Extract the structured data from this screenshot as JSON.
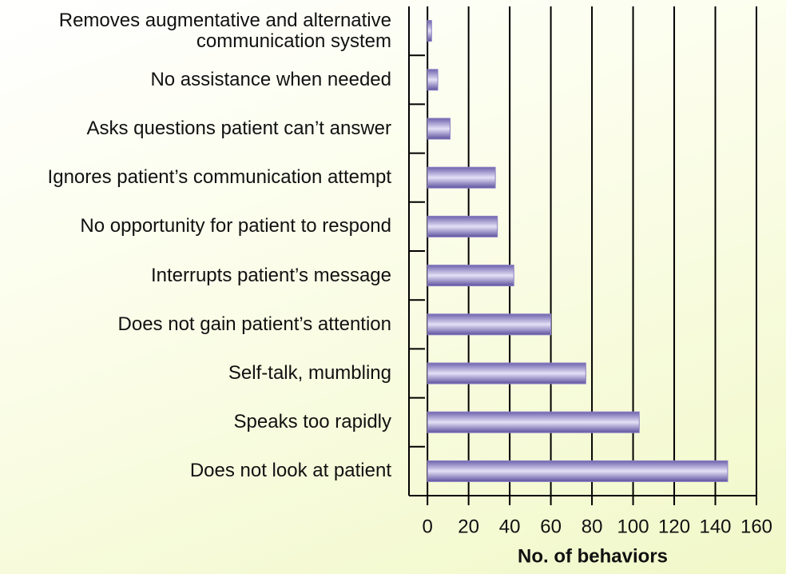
{
  "chart_data": {
    "type": "barh",
    "x_label": "No. of behaviors",
    "categories": [
      "Removes augmentative and alternative communication system",
      "No assistance when needed",
      "Asks questions patient can’t answer",
      "Ignores patient’s communication attempt",
      "No opportunity for patient to respond",
      "Interrupts patient’s message",
      "Does not gain patient’s attention",
      "Self-talk, mumbling",
      "Speaks too rapidly",
      "Does not look at patient"
    ],
    "values": [
      2,
      5,
      11,
      33,
      34,
      42,
      60,
      77,
      103,
      146
    ],
    "color": "#8a7fc4",
    "xlim": [
      -9,
      160
    ],
    "xticks": [
      0,
      20,
      40,
      60,
      80,
      100,
      120,
      140,
      160
    ],
    "grid": true
  }
}
